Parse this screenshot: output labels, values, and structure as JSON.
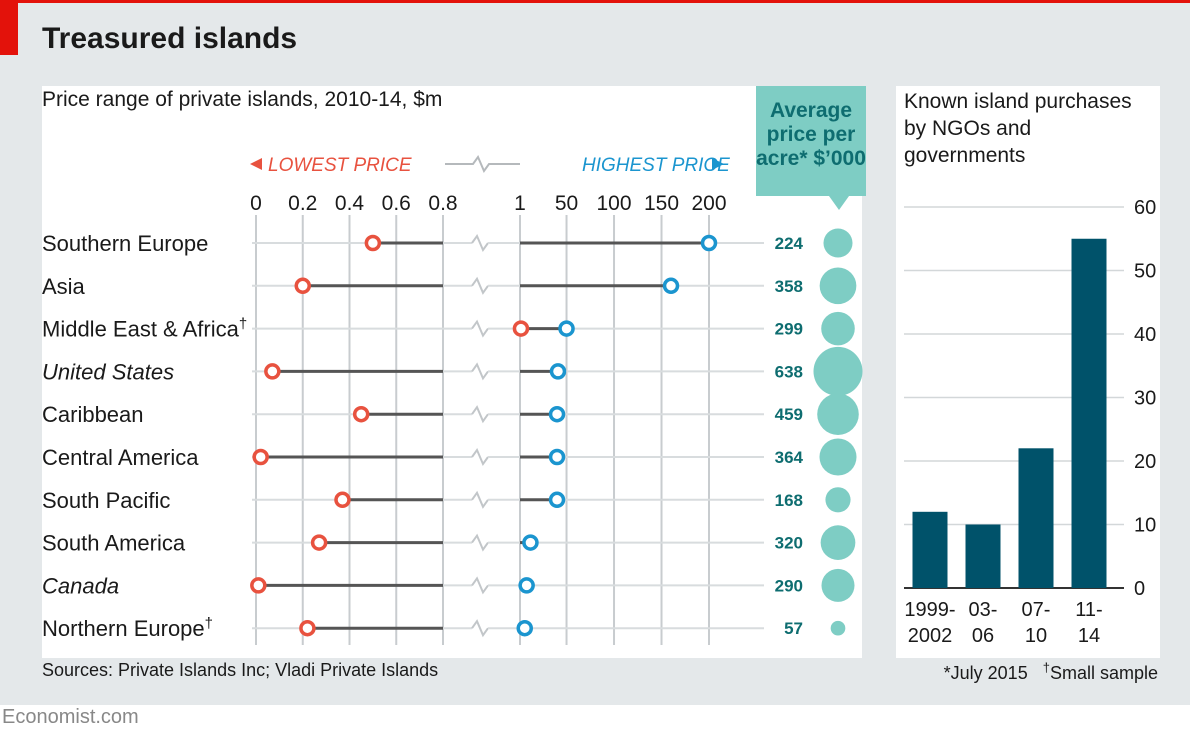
{
  "title": "Treasured islands",
  "left_subtitle": "Price range of private islands, 2010-14, $m",
  "right_subtitle": "Known island purchases by NGOs and governments",
  "average_header": "Average price per acre* $’000",
  "legend": {
    "lowest": "LOWEST PRICE",
    "highest": "HIGHEST PRICE"
  },
  "sources": "Sources: Private Islands Inc; Vladi Private Islands",
  "footnote_date": "*July 2015",
  "footnote_dagger_mark": "†",
  "footnote_sample": "Small sample",
  "brand": "Economist.com",
  "colors": {
    "low": "#e8523f",
    "high": "#1b95cf",
    "teal": "#7ecdc4",
    "teal_text": "#0e6d70",
    "bar": "#00526a",
    "range_line": "#555555"
  },
  "chart_data": [
    {
      "type": "dumbbell",
      "title": "Price range of private islands, 2010-14, $m",
      "left_scale": {
        "label": "LOWEST PRICE",
        "range": [
          0,
          0.8
        ],
        "ticks": [
          0,
          0.2,
          0.4,
          0.6,
          0.8
        ],
        "tick_labels": [
          "0",
          "0.2",
          "0.4",
          "0.6",
          "0.8"
        ]
      },
      "right_scale": {
        "label": "HIGHEST PRICE",
        "range": [
          1,
          200
        ],
        "ticks": [
          1,
          50,
          100,
          150,
          200
        ],
        "tick_labels": [
          "1",
          "50",
          "100",
          "150",
          "200"
        ]
      },
      "rows": [
        {
          "region": "Southern Europe",
          "mark": "",
          "italic": false,
          "lowest": 0.5,
          "highest": 200,
          "avg_per_acre": 224
        },
        {
          "region": "Asia",
          "mark": "",
          "italic": false,
          "lowest": 0.2,
          "highest": 160,
          "avg_per_acre": 358
        },
        {
          "region": "Middle East & Africa",
          "mark": "†",
          "italic": false,
          "lowest": null,
          "low_on_right_scale": 2,
          "highest": 50,
          "avg_per_acre": 299
        },
        {
          "region": "United States",
          "mark": "",
          "italic": true,
          "lowest": 0.07,
          "highest": 41,
          "avg_per_acre": 638
        },
        {
          "region": "Caribbean",
          "mark": "",
          "italic": false,
          "lowest": 0.45,
          "highest": 40,
          "avg_per_acre": 459
        },
        {
          "region": "Central America",
          "mark": "",
          "italic": false,
          "lowest": 0.02,
          "highest": 40,
          "avg_per_acre": 364
        },
        {
          "region": "South Pacific",
          "mark": "",
          "italic": false,
          "lowest": 0.37,
          "highest": 40,
          "avg_per_acre": 168
        },
        {
          "region": "South America",
          "mark": "",
          "italic": false,
          "lowest": 0.27,
          "highest": 12,
          "avg_per_acre": 320
        },
        {
          "region": "Canada",
          "mark": "",
          "italic": true,
          "lowest": 0.01,
          "highest": 8,
          "avg_per_acre": 290
        },
        {
          "region": "Northern Europe",
          "mark": "†",
          "italic": false,
          "lowest": 0.22,
          "highest": 6,
          "avg_per_acre": 57
        }
      ]
    },
    {
      "type": "bar",
      "title": "Known island purchases by NGOs and governments",
      "categories": [
        "1999-2002",
        "03-06",
        "07-10",
        "11-14"
      ],
      "category_lines": [
        [
          "1999-",
          "2002"
        ],
        [
          "03-",
          "06"
        ],
        [
          "07-",
          "10"
        ],
        [
          "11-",
          "14"
        ]
      ],
      "values": [
        12,
        10,
        22,
        55
      ],
      "ylim": [
        0,
        60
      ],
      "yticks": [
        0,
        10,
        20,
        30,
        40,
        50,
        60
      ]
    }
  ]
}
